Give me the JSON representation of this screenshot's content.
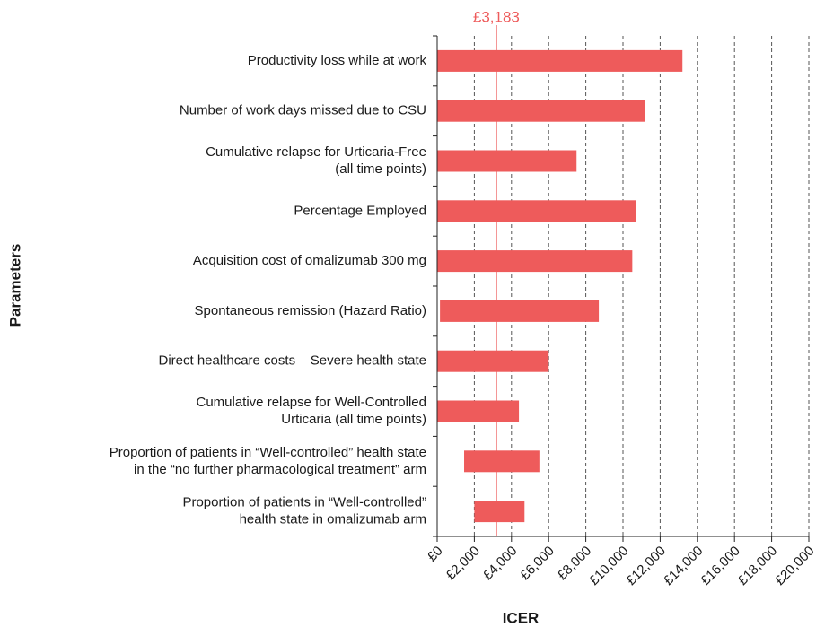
{
  "chart_data": {
    "type": "tornado",
    "xlabel": "ICER",
    "ylabel": "Parameters",
    "categories": [
      [
        "Productivity loss while at work"
      ],
      [
        "Number of work days missed due to CSU"
      ],
      [
        "Cumulative relapse for Urticaria-Free",
        "(all time points)"
      ],
      [
        "Percentage Employed"
      ],
      [
        "Acquisition cost of omalizumab 300 mg"
      ],
      [
        "Spontaneous remission (Hazard Ratio)"
      ],
      [
        "Direct healthcare costs – Severe health state"
      ],
      [
        "Cumulative relapse for Well-Controlled",
        "Urticaria (all time points)"
      ],
      [
        "Proportion of patients in “Well-controlled” health state",
        "in the “no further pharmacological treatment” arm"
      ],
      [
        "Proportion of patients in “Well-controlled”",
        "health state in omalizumab arm"
      ]
    ],
    "low": [
      0,
      0,
      0,
      0,
      0,
      150,
      0,
      0,
      1450,
      2000
    ],
    "high": [
      13200,
      11200,
      7500,
      10700,
      10500,
      8700,
      6000,
      4400,
      5500,
      4700
    ],
    "color": "#ee5b5b",
    "reference": {
      "value": 3183,
      "label": "£3,183"
    },
    "xlim": [
      0,
      20000
    ],
    "xticks": [
      {
        "value": 0,
        "label": "£0"
      },
      {
        "value": 2000,
        "label": "£2,000"
      },
      {
        "value": 4000,
        "label": "£4,000"
      },
      {
        "value": 6000,
        "label": "£6,000"
      },
      {
        "value": 8000,
        "label": "£8,000"
      },
      {
        "value": 10000,
        "label": "£10,000"
      },
      {
        "value": 12000,
        "label": "£12,000"
      },
      {
        "value": 14000,
        "label": "£14,000"
      },
      {
        "value": 16000,
        "label": "£16,000"
      },
      {
        "value": 18000,
        "label": "£18,000"
      },
      {
        "value": 20000,
        "label": "£20,000"
      }
    ],
    "grid": true
  }
}
